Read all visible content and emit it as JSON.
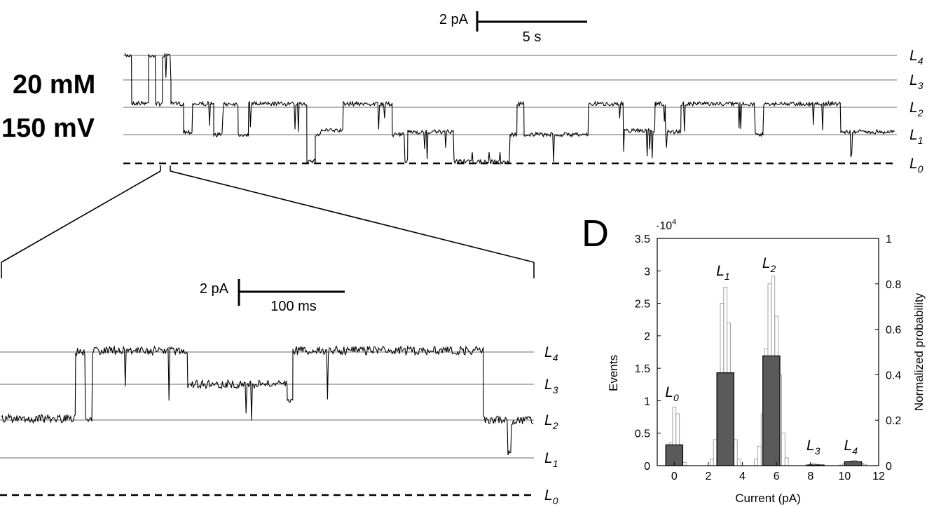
{
  "conditions": {
    "concentration": "20 mM",
    "voltage": "150 mV"
  },
  "top_trace": {
    "scalebar": {
      "current_label": "2 pA",
      "time_label": "5 s"
    },
    "levels": [
      {
        "name": "L",
        "sub": "4"
      },
      {
        "name": "L",
        "sub": "3"
      },
      {
        "name": "L",
        "sub": "2"
      },
      {
        "name": "L",
        "sub": "1"
      },
      {
        "name": "L",
        "sub": "0"
      }
    ]
  },
  "zoom_trace": {
    "scalebar": {
      "current_label": "2 pA",
      "time_label": "100 ms"
    },
    "levels": [
      {
        "name": "L",
        "sub": "4"
      },
      {
        "name": "L",
        "sub": "3"
      },
      {
        "name": "L",
        "sub": "2"
      },
      {
        "name": "L",
        "sub": "1"
      },
      {
        "name": "L",
        "sub": "0"
      }
    ]
  },
  "panel_d": {
    "letter": "D"
  },
  "chart_data": {
    "type": "bar",
    "xlabel": "Current (pA)",
    "ylabel": "Events",
    "ylabel_right": "Normalized probability",
    "y_multiplier": "·10",
    "y_multiplier_exp": "4",
    "xlim": [
      -1,
      12
    ],
    "ylim": [
      0,
      3.5
    ],
    "ylim_right": [
      0,
      1
    ],
    "x_ticks": [
      0,
      2,
      4,
      6,
      8,
      10,
      12
    ],
    "y_ticks": [
      0,
      0.5,
      1,
      1.5,
      2,
      2.5,
      3,
      3.5
    ],
    "y_ticks_right": [
      0,
      0.2,
      0.4,
      0.6,
      0.8,
      1
    ],
    "peak_labels": [
      {
        "name": "L",
        "sub": "0",
        "x": 0
      },
      {
        "name": "L",
        "sub": "1",
        "x": 3
      },
      {
        "name": "L",
        "sub": "2",
        "x": 5.7
      },
      {
        "name": "L",
        "sub": "3",
        "x": 8.3
      },
      {
        "name": "L",
        "sub": "4",
        "x": 10.5
      }
    ],
    "series": [
      {
        "style": "coarse-filled",
        "bins": [
          {
            "x": 0,
            "value": 0.32
          },
          {
            "x": 3,
            "value": 1.43
          },
          {
            "x": 5.7,
            "value": 1.69
          },
          {
            "x": 8.3,
            "value": 0.01
          },
          {
            "x": 10.5,
            "value": 0.06
          }
        ]
      },
      {
        "style": "fine-outline",
        "x": [
          -0.4,
          -0.2,
          0,
          0.2,
          0.4,
          0.6,
          2.2,
          2.4,
          2.6,
          2.8,
          3.0,
          3.2,
          3.4,
          3.6,
          3.8,
          4.8,
          5.0,
          5.2,
          5.4,
          5.6,
          5.8,
          6.0,
          6.2,
          6.4,
          6.6,
          7.8,
          8.0,
          8.2,
          8.4,
          8.6,
          9.8,
          10.0,
          10.2,
          10.4,
          10.6,
          10.8,
          11.0,
          11.2
        ],
        "values": [
          0.05,
          0.35,
          0.9,
          0.8,
          0.3,
          0.05,
          0.1,
          0.4,
          1.3,
          2.5,
          2.75,
          2.2,
          1.2,
          0.4,
          0.1,
          0.1,
          0.3,
          0.8,
          1.8,
          2.8,
          2.92,
          2.3,
          1.4,
          0.5,
          0.12,
          0.01,
          0.02,
          0.03,
          0.02,
          0.01,
          0.01,
          0.03,
          0.05,
          0.07,
          0.08,
          0.06,
          0.04,
          0.02
        ]
      }
    ]
  }
}
